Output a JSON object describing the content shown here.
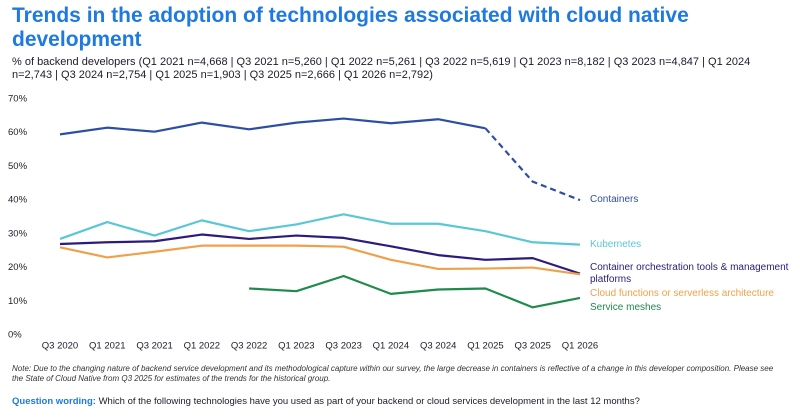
{
  "chart_data": {
    "type": "line",
    "title": "Trends in the adoption of technologies associated with cloud native development",
    "subtitle": "% of backend developers (Q1 2021 n=4,668 | Q3 2021 n=5,260 | Q1 2022 n=5,261 | Q3 2022 n=5,619 | Q1 2023 n=8,182 | Q3 2023 n=4,847 | Q1 2024 n=2,743 | Q3 2024 n=2,754 | Q1 2025 n=1,903 | Q3 2025 n=2,666 | Q1 2026 n=2,792)",
    "categories": [
      "Q3 2020",
      "Q1 2021",
      "Q3 2021",
      "Q1 2022",
      "Q3 2022",
      "Q1 2023",
      "Q3 2023",
      "Q1 2024",
      "Q3 2024",
      "Q1 2025",
      "Q3 2025",
      "Q1 2026"
    ],
    "ylim": [
      0,
      70
    ],
    "yticks": [
      {
        "value": 0,
        "label": "0%"
      },
      {
        "value": 10,
        "label": "10%"
      },
      {
        "value": 20,
        "label": "20%"
      },
      {
        "value": 30,
        "label": "30%"
      },
      {
        "value": 40,
        "label": "40%"
      },
      {
        "value": 50,
        "label": "50%"
      },
      {
        "value": 60,
        "label": "60%"
      },
      {
        "value": 70,
        "label": "70%"
      }
    ],
    "grid": false,
    "series": [
      {
        "name": "Containers",
        "color": "#2d4fa3",
        "dashed_from_index": 9,
        "values": [
          59.5,
          61.5,
          60.3,
          63,
          61,
          63,
          64.2,
          62.8,
          64,
          61.3,
          45.5,
          40
        ]
      },
      {
        "name": "Kubernetes",
        "color": "#5ac7d5",
        "values": [
          28.5,
          33.5,
          29.5,
          34,
          30.8,
          32.8,
          35.8,
          33,
          33,
          30.8,
          27.5,
          26.8
        ]
      },
      {
        "name": "Container orchestration tools & management platforms",
        "color": "#2b1b7c",
        "values": [
          27,
          27.5,
          27.8,
          29.8,
          28.5,
          29.5,
          28.8,
          26.3,
          23.7,
          22.3,
          22.8,
          18.2
        ]
      },
      {
        "name": "Cloud functions or serverless architecture",
        "color": "#f0a04b",
        "values": [
          26,
          23,
          24.7,
          26.5,
          26.5,
          26.5,
          26.2,
          22.3,
          19.6,
          19.7,
          20,
          18
        ]
      },
      {
        "name": "Service meshes",
        "color": "#1f8a4c",
        "values": [
          null,
          null,
          null,
          null,
          13.8,
          13,
          17.5,
          12.2,
          13.5,
          13.8,
          8.2,
          11
        ]
      }
    ],
    "note": "Note: Due to the changing nature of backend service development and its methodological capture within our survey, the large decrease in containers is reflective of a change in this developer composition. Please see the State of Cloud Native from Q3 2025 for estimates of the trends for the historical group.",
    "question_wording": {
      "label": "Question wording:",
      "text": "Which of the following technologies have you used as part of your backend or cloud services development in the last 12 months?"
    }
  }
}
